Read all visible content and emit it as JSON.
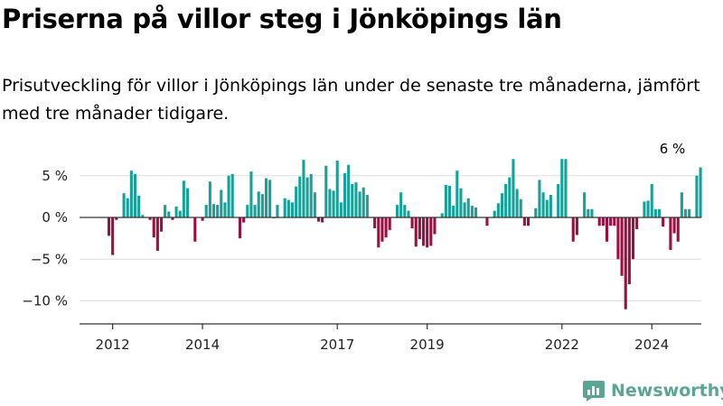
{
  "title": "Priserna på villor steg i Jönköpings län",
  "subtitle": "Prisutveckling för villor i Jönköpings län under de senaste tre månaderna, jämfört med tre månader tidigare.",
  "brand": "Newsworthy",
  "colors": {
    "positive": "#17a198",
    "negative": "#9d0f43",
    "grid": "#dddddd",
    "axis": "#333333",
    "brand": "#5aa593"
  },
  "chart_data": {
    "type": "bar",
    "x_start": "2011-12",
    "frequency": "monthly",
    "x_ticks": [
      "2012",
      "2014",
      "2017",
      "2019",
      "2022",
      "2024"
    ],
    "y_ticks": [
      "5 %",
      "0 %",
      "−5 %",
      "−10 %"
    ],
    "ylim": [
      -12,
      8
    ],
    "grid": true,
    "annotation": "6 %",
    "values": [
      -2.2,
      -4.5,
      -0.3,
      0,
      2.9,
      2.3,
      5.6,
      5.2,
      2.6,
      0.3,
      0,
      -0.3,
      -2.4,
      -4,
      -1.7,
      1.5,
      0.7,
      -0.3,
      1.3,
      0.8,
      4.4,
      3.5,
      0,
      -2.9,
      0,
      -0.4,
      1.5,
      4.3,
      1.6,
      1.5,
      3.3,
      1.8,
      5,
      5.2,
      0,
      -2.5,
      -0.6,
      1.5,
      5.5,
      1.5,
      3.1,
      2.8,
      4.7,
      4.5,
      -0.1,
      1.5,
      0,
      2.3,
      2.1,
      1.8,
      3.7,
      4.9,
      6.9,
      4.8,
      5.2,
      3,
      -0.5,
      -0.6,
      6.2,
      3.4,
      3.2,
      6.8,
      1.8,
      5.3,
      6.3,
      4,
      4.2,
      3.1,
      3.6,
      2.7,
      0,
      -1.3,
      -3.6,
      -2.9,
      -2.4,
      -1.5,
      0,
      1.5,
      3,
      1.5,
      0.8,
      -1.3,
      -3.5,
      -2.6,
      -3.4,
      -3.6,
      -3.4,
      -2,
      0,
      0.5,
      3.9,
      3.8,
      1.4,
      5.6,
      3.5,
      1.8,
      2.3,
      1.4,
      1.2,
      0,
      0,
      -1,
      0,
      0.8,
      1.7,
      2.9,
      4,
      4.8,
      7,
      3.4,
      2.2,
      -1,
      -1,
      0,
      1.1,
      4.5,
      3,
      2.1,
      2.7,
      0,
      4,
      7,
      7,
      0,
      -2.9,
      -2.1,
      0,
      3,
      1,
      1,
      0,
      -1,
      -1,
      -2.9,
      -1,
      -1,
      -5,
      -7,
      -11,
      -8,
      -5,
      -1.4,
      0,
      1.9,
      2,
      4,
      1,
      1,
      -1.1,
      0,
      -3.9,
      -1.9,
      -2.9,
      3,
      1,
      1,
      0,
      5,
      6
    ]
  }
}
